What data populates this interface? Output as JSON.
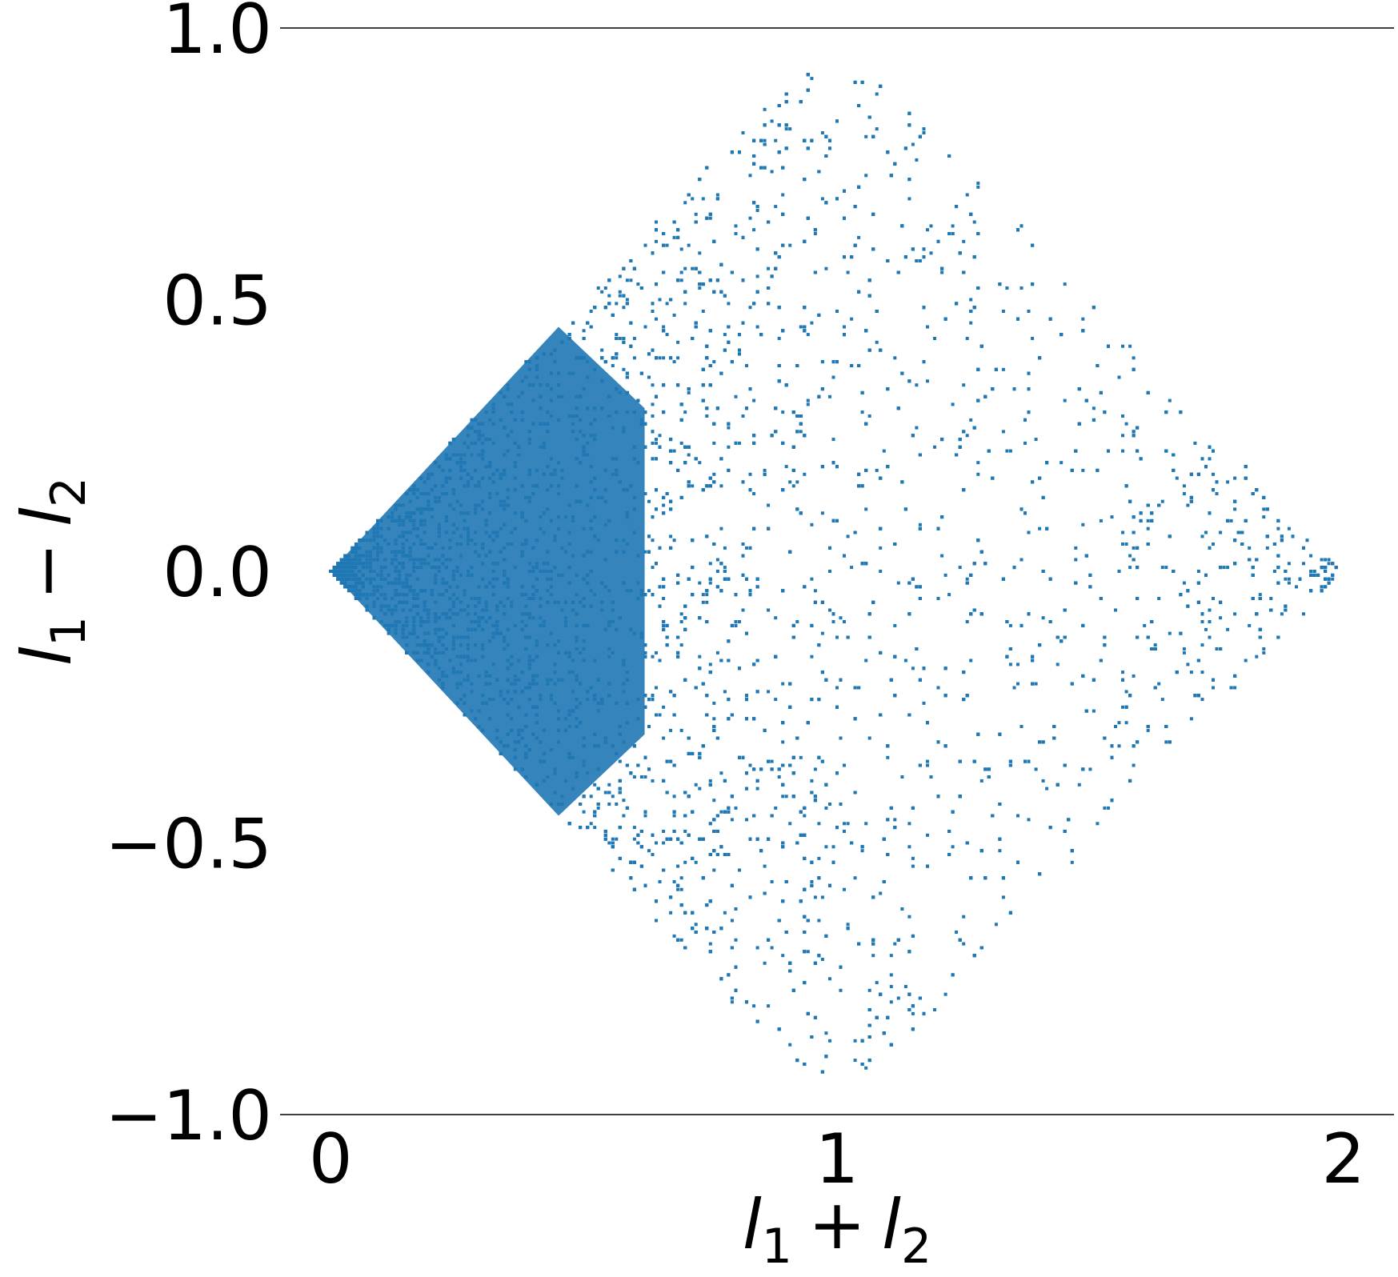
{
  "chart_data": {
    "type": "scatter",
    "title": "",
    "xlabel": {
      "base": "l",
      "sub1": "1",
      "op": "+",
      "sub2": "2"
    },
    "ylabel": {
      "base": "l",
      "sub1": "1",
      "op": "−",
      "sub2": "2"
    },
    "xlim": [
      -0.1,
      2.1
    ],
    "ylim": [
      -1.0,
      1.0
    ],
    "xticks": [
      0,
      1,
      2
    ],
    "xtick_labels": [
      "0",
      "1",
      "2"
    ],
    "yticks": [
      -1.0,
      -0.5,
      0.0,
      0.5,
      1.0
    ],
    "ytick_labels": [
      "−1.0",
      "−0.5",
      "0.0",
      "0.5",
      "1.0"
    ],
    "grid": false,
    "series": [
      {
        "color": "#1f77b4",
        "vertices": [
          [
            0,
            0
          ],
          [
            1,
            1
          ],
          [
            2,
            0
          ],
          [
            1,
            -1
          ]
        ],
        "point_count": 9000,
        "peak_density_at_x": 0.5,
        "observed_max_abs_y": 0.92
      }
    ]
  }
}
